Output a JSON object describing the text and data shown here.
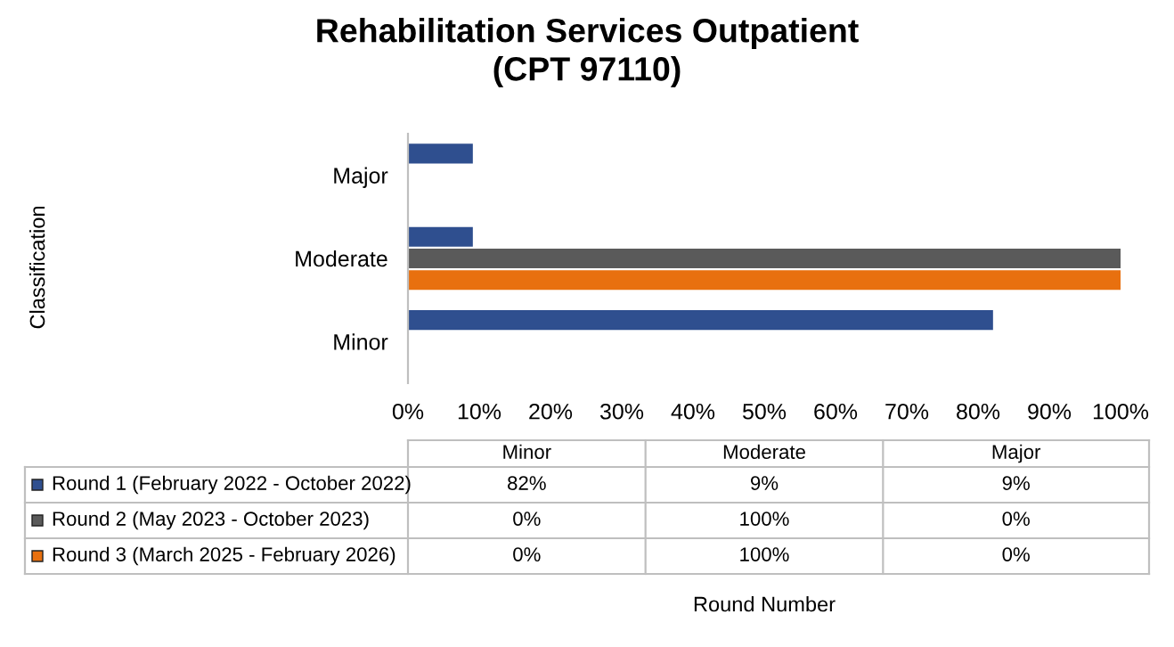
{
  "chart_data": {
    "type": "bar",
    "orientation": "horizontal",
    "title": "Rehabilitation Services Outpatient\n(CPT 97110)",
    "annotations": [
      "Classification",
      "Round Number",
      "82%",
      "9%",
      "9%",
      "0%",
      "100%",
      "0%",
      "0%",
      "100%",
      "0%"
    ],
    "categories": [
      "Major",
      "Moderate",
      "Minor"
    ],
    "series": [
      {
        "name": "Round 1 (February 2022 - October 2022)",
        "color": "#2f4f8f",
        "values": [
          9,
          9,
          82
        ]
      },
      {
        "name": "Round 2 (May 2023 - October 2023)",
        "color": "#5a5a5a",
        "values": [
          0,
          100,
          0
        ]
      },
      {
        "name": "Round 3 (March 2025 - February 2026)",
        "color": "#e8700f",
        "values": [
          0,
          100,
          0
        ]
      }
    ],
    "xlim": [
      0,
      100
    ],
    "xticks": [
      {
        "value": 0,
        "label": "0%"
      },
      {
        "value": 10,
        "label": "10%"
      },
      {
        "value": 20,
        "label": "20%"
      },
      {
        "value": 30,
        "label": "30%"
      },
      {
        "value": 40,
        "label": "40%"
      },
      {
        "value": 50,
        "label": "50%"
      },
      {
        "value": 60,
        "label": "60%"
      },
      {
        "value": 70,
        "label": "70%"
      },
      {
        "value": 80,
        "label": "80%"
      },
      {
        "value": 90,
        "label": "90%"
      },
      {
        "value": 100,
        "label": "100%"
      }
    ],
    "grid": false,
    "legend": "bottom"
  }
}
